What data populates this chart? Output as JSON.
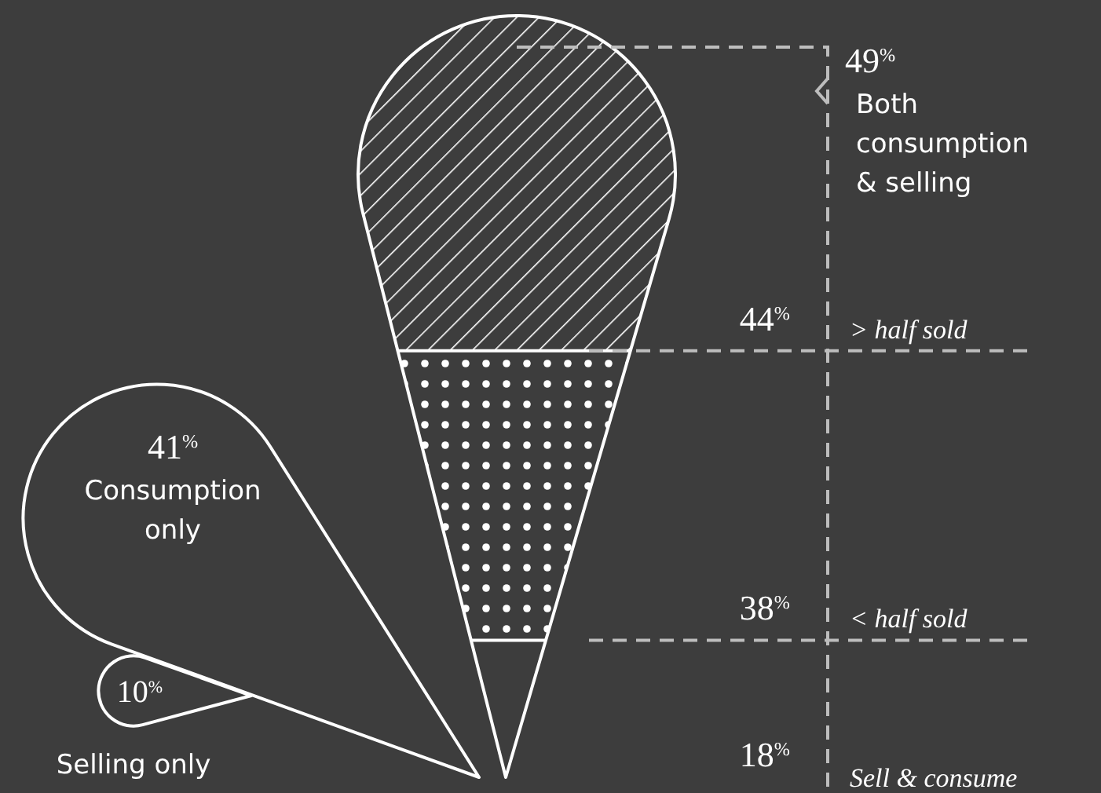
{
  "chart_data": [
    {
      "type": "other",
      "categories": [
        "Both consumption & selling",
        "Consumption only",
        "Selling only"
      ],
      "values": [
        49,
        41,
        10
      ],
      "value_labels": [
        "49$^{%}$",
        "41$^{%}$",
        "10$^{%}$"
      ]
    },
    {
      "type": "other",
      "categories": [
        "> half sold",
        "< half sold",
        "Sell & consume"
      ],
      "values": [
        44,
        38,
        18
      ],
      "value_labels": [
        "44$^{%}$",
        "38$^{%}$",
        "18$^{%}$"
      ]
    }
  ]
}
